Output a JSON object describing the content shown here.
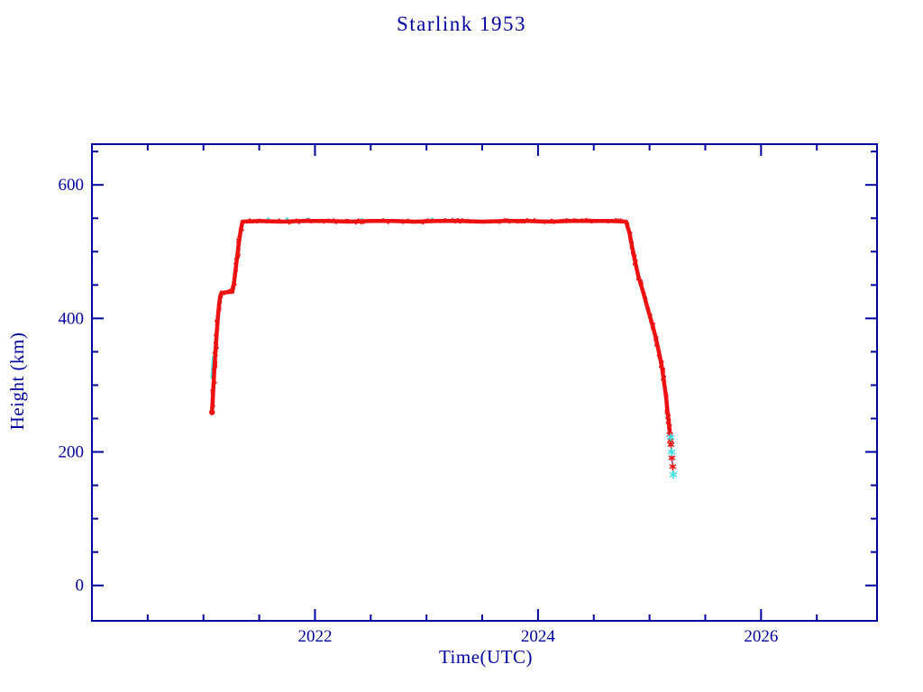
{
  "page": {
    "background": "#ffffff"
  },
  "chart_data": {
    "type": "scatter",
    "title": "Starlink 1953",
    "xlabel": "Time(UTC)",
    "ylabel": "Height (km)",
    "xlim": [
      2020.0,
      2027.04
    ],
    "ylim": [
      -53,
      661
    ],
    "x_major_ticks": [
      2022,
      2024,
      2026
    ],
    "x_minor_step": 0.5,
    "y_major_ticks": [
      0,
      200,
      400,
      600
    ],
    "y_minor_step": 50,
    "grid": false,
    "legend_position": "none",
    "axis_color": "#0000a0",
    "series": [
      {
        "name": "height-primary",
        "color": "#ee1111",
        "style": "dense-band",
        "points": [
          [
            2021.077,
            262
          ],
          [
            2021.082,
            276
          ],
          [
            2021.086,
            288
          ],
          [
            2021.09,
            300
          ],
          [
            2021.094,
            312
          ],
          [
            2021.098,
            324
          ],
          [
            2021.103,
            338
          ],
          [
            2021.108,
            352
          ],
          [
            2021.115,
            368
          ],
          [
            2021.122,
            385
          ],
          [
            2021.13,
            403
          ],
          [
            2021.14,
            420
          ],
          [
            2021.15,
            433
          ],
          [
            2021.16,
            438
          ],
          [
            2021.2,
            439
          ],
          [
            2021.26,
            440
          ],
          [
            2021.275,
            455
          ],
          [
            2021.295,
            482
          ],
          [
            2021.315,
            510
          ],
          [
            2021.335,
            533
          ],
          [
            2021.35,
            545
          ],
          [
            2021.5,
            546
          ],
          [
            2021.7,
            545
          ],
          [
            2021.9,
            546
          ],
          [
            2022.1,
            546
          ],
          [
            2022.3,
            545
          ],
          [
            2022.5,
            546
          ],
          [
            2022.7,
            546
          ],
          [
            2022.9,
            545
          ],
          [
            2023.1,
            546
          ],
          [
            2023.3,
            546
          ],
          [
            2023.5,
            545
          ],
          [
            2023.7,
            546
          ],
          [
            2023.9,
            546
          ],
          [
            2024.1,
            545
          ],
          [
            2024.3,
            546
          ],
          [
            2024.5,
            546
          ],
          [
            2024.65,
            546
          ],
          [
            2024.79,
            545
          ],
          [
            2024.82,
            528
          ],
          [
            2024.84,
            510
          ],
          [
            2024.86,
            494
          ],
          [
            2024.88,
            478
          ],
          [
            2024.9,
            463
          ],
          [
            2024.92,
            452
          ],
          [
            2024.94,
            441
          ],
          [
            2024.97,
            423
          ],
          [
            2025.0,
            405
          ],
          [
            2025.03,
            388
          ],
          [
            2025.06,
            368
          ],
          [
            2025.09,
            345
          ],
          [
            2025.11,
            328
          ],
          [
            2025.13,
            305
          ],
          [
            2025.15,
            280
          ],
          [
            2025.16,
            262
          ],
          [
            2025.17,
            248
          ],
          [
            2025.178,
            236
          ],
          [
            2025.182,
            230
          ]
        ],
        "tail_markers": [
          [
            2025.183,
            226
          ],
          [
            2025.188,
            217
          ],
          [
            2025.192,
            211
          ],
          [
            2025.2,
            191
          ],
          [
            2025.208,
            178
          ]
        ]
      },
      {
        "name": "height-secondary",
        "color": "#3fe0e0",
        "style": "markers",
        "start_band": [
          [
            2021.083,
            312
          ],
          [
            2021.087,
            320
          ],
          [
            2021.09,
            328
          ],
          [
            2021.094,
            336
          ],
          [
            2021.097,
            342
          ]
        ],
        "plateau_specks": [
          [
            2021.58,
            549
          ],
          [
            2021.75,
            549
          ],
          [
            2021.94,
            549
          ],
          [
            2022.42,
            548
          ],
          [
            2023.05,
            549
          ]
        ],
        "tail_markers": [
          [
            2025.19,
            222
          ],
          [
            2025.198,
            200
          ],
          [
            2025.213,
            166
          ]
        ]
      }
    ],
    "tail_connector": {
      "color": "#303090",
      "from": [
        2025.181,
        232
      ],
      "to": [
        2025.214,
        166
      ]
    }
  }
}
